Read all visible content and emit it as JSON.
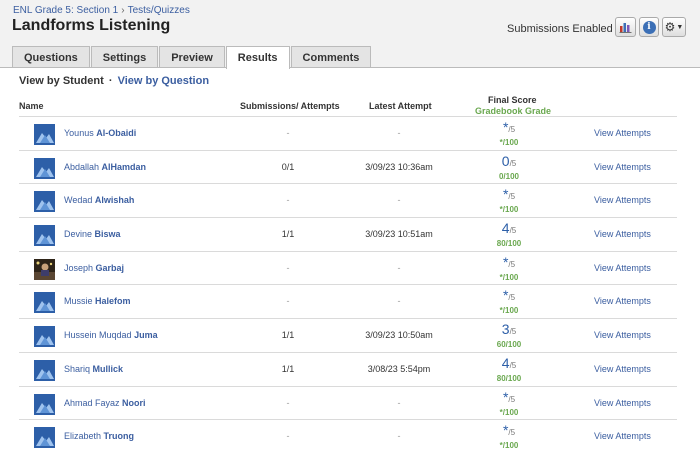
{
  "breadcrumb": {
    "course": "ENL Grade 5: Section 1",
    "section": "Tests/Quizzes"
  },
  "title": "Landforms Listening",
  "status": "Submissions Enabled",
  "tabs": [
    {
      "label": "Questions",
      "active": false
    },
    {
      "label": "Settings",
      "active": false
    },
    {
      "label": "Preview",
      "active": false
    },
    {
      "label": "Results",
      "active": true
    },
    {
      "label": "Comments",
      "active": false
    }
  ],
  "view_toggle": {
    "current": "View by Student",
    "separator": "·",
    "alt": "View by Question"
  },
  "columns": {
    "name": "Name",
    "submissions": "Submissions/ Attempts",
    "latest": "Latest Attempt",
    "final_score": "Final Score",
    "gradebook": "Gradebook Grade"
  },
  "colors": {
    "accent": "#3b5ea0",
    "grade_green": "#6aa84f",
    "score_blue": "#2d5fa8"
  },
  "rows": [
    {
      "first": "Younus",
      "last": "Al-Obaidi",
      "submissions": "-",
      "latest": "-",
      "score": "*",
      "out_of": "/5",
      "grade": "*/100",
      "action": "View Attempts",
      "avatar": "default-avatar-icon"
    },
    {
      "first": "Abdallah",
      "last": "AlHamdan",
      "submissions": "0/1",
      "latest": "3/09/23 10:36am",
      "score": "0",
      "out_of": "/5",
      "grade": "0/100",
      "action": "View Attempts",
      "avatar": "default-avatar-icon"
    },
    {
      "first": "Wedad",
      "last": "Alwishah",
      "submissions": "-",
      "latest": "-",
      "score": "*",
      "out_of": "/5",
      "grade": "*/100",
      "action": "View Attempts",
      "avatar": "default-avatar-icon"
    },
    {
      "first": "Devine",
      "last": "Biswa",
      "submissions": "1/1",
      "latest": "3/09/23 10:51am",
      "score": "4",
      "out_of": "/5",
      "grade": "80/100",
      "action": "View Attempts",
      "avatar": "default-avatar-icon"
    },
    {
      "first": "Joseph",
      "last": "Garbaj",
      "submissions": "-",
      "latest": "-",
      "score": "*",
      "out_of": "/5",
      "grade": "*/100",
      "action": "View Attempts",
      "avatar": "photo-avatar"
    },
    {
      "first": "Mussie",
      "last": "Halefom",
      "submissions": "-",
      "latest": "-",
      "score": "*",
      "out_of": "/5",
      "grade": "*/100",
      "action": "View Attempts",
      "avatar": "default-avatar-icon"
    },
    {
      "first": "Hussein Muqdad",
      "last": "Juma",
      "submissions": "1/1",
      "latest": "3/09/23 10:50am",
      "score": "3",
      "out_of": "/5",
      "grade": "60/100",
      "action": "View Attempts",
      "avatar": "default-avatar-icon"
    },
    {
      "first": "Shariq",
      "last": "Mullick",
      "submissions": "1/1",
      "latest": "3/08/23 5:54pm",
      "score": "4",
      "out_of": "/5",
      "grade": "80/100",
      "action": "View Attempts",
      "avatar": "default-avatar-icon"
    },
    {
      "first": "Ahmad Fayaz",
      "last": "Noori",
      "submissions": "-",
      "latest": "-",
      "score": "*",
      "out_of": "/5",
      "grade": "*/100",
      "action": "View Attempts",
      "avatar": "default-avatar-icon"
    },
    {
      "first": "Elizabeth",
      "last": "Truong",
      "submissions": "-",
      "latest": "-",
      "score": "*",
      "out_of": "/5",
      "grade": "*/100",
      "action": "View Attempts",
      "avatar": "default-avatar-icon"
    }
  ]
}
